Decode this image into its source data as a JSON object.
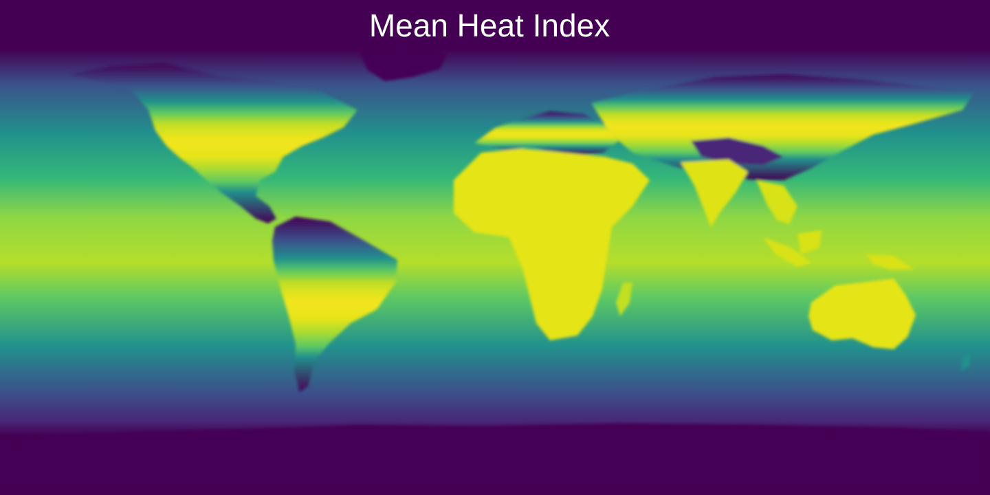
{
  "map": {
    "title": "Mean Heat Index",
    "projection": "equirectangular",
    "extent": {
      "lon": [
        -180,
        180
      ],
      "lat": [
        -90,
        90
      ]
    },
    "colormap": "viridis",
    "colors": {
      "low": "#440154",
      "low_mid": "#3b528b",
      "mid": "#21918c",
      "high_mid": "#5ec962",
      "high": "#fde725"
    },
    "features": {
      "land_regions": [
        "north-america",
        "greenland",
        "south-america",
        "africa",
        "europe",
        "asia",
        "india",
        "southeast-asia",
        "madagascar",
        "australia",
        "antarctica"
      ]
    }
  }
}
